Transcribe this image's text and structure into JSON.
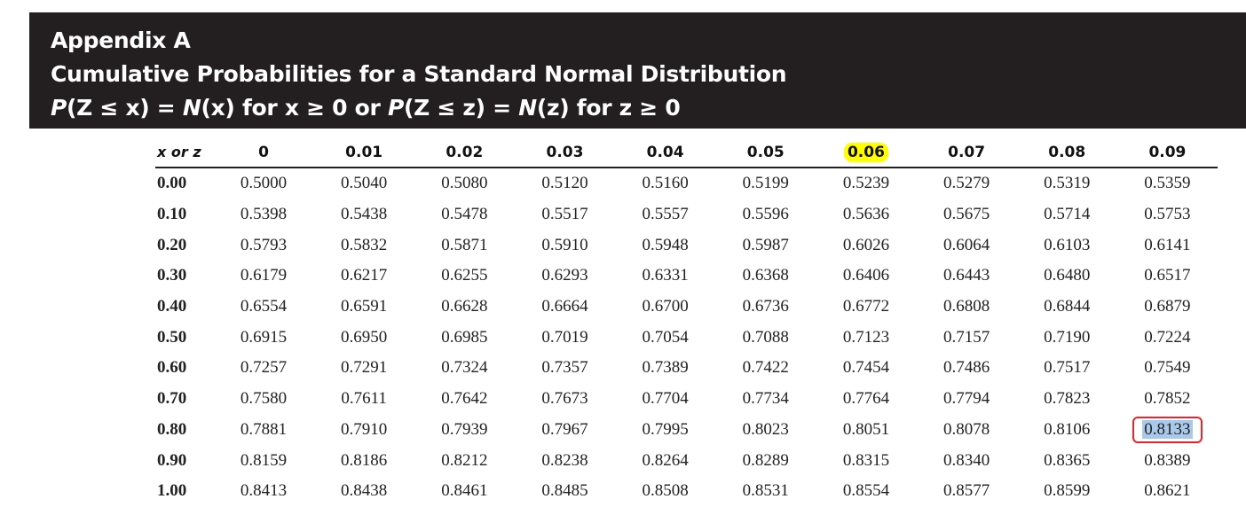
{
  "header": {
    "title": "Appendix A",
    "subtitle": "Cumulative Probabilities for a Standard Normal Distribution",
    "formula": {
      "p1": "P",
      "arg1": "(Z ≤ x) = ",
      "n1": "N",
      "rest1": "(x) for x ≥ 0 or ",
      "p2": "P",
      "arg2": "(Z ≤ z) = ",
      "n2": "N",
      "rest2": "(z) for z ≥ 0"
    }
  },
  "table": {
    "corner_label": "x or z",
    "columns": [
      "0",
      "0.01",
      "0.02",
      "0.03",
      "0.04",
      "0.05",
      "0.06",
      "0.07",
      "0.08",
      "0.09"
    ],
    "highlighted_column": "0.06",
    "selected_cell": {
      "row": "0.80",
      "column": "0.09",
      "value": "0.8133"
    },
    "rows": [
      {
        "label": "0.00",
        "values": [
          "0.5000",
          "0.5040",
          "0.5080",
          "0.5120",
          "0.5160",
          "0.5199",
          "0.5239",
          "0.5279",
          "0.5319",
          "0.5359"
        ]
      },
      {
        "label": "0.10",
        "values": [
          "0.5398",
          "0.5438",
          "0.5478",
          "0.5517",
          "0.5557",
          "0.5596",
          "0.5636",
          "0.5675",
          "0.5714",
          "0.5753"
        ]
      },
      {
        "label": "0.20",
        "values": [
          "0.5793",
          "0.5832",
          "0.5871",
          "0.5910",
          "0.5948",
          "0.5987",
          "0.6026",
          "0.6064",
          "0.6103",
          "0.6141"
        ]
      },
      {
        "label": "0.30",
        "values": [
          "0.6179",
          "0.6217",
          "0.6255",
          "0.6293",
          "0.6331",
          "0.6368",
          "0.6406",
          "0.6443",
          "0.6480",
          "0.6517"
        ]
      },
      {
        "label": "0.40",
        "values": [
          "0.6554",
          "0.6591",
          "0.6628",
          "0.6664",
          "0.6700",
          "0.6736",
          "0.6772",
          "0.6808",
          "0.6844",
          "0.6879"
        ]
      },
      {
        "label": "0.50",
        "values": [
          "0.6915",
          "0.6950",
          "0.6985",
          "0.7019",
          "0.7054",
          "0.7088",
          "0.7123",
          "0.7157",
          "0.7190",
          "0.7224"
        ]
      },
      {
        "label": "0.60",
        "values": [
          "0.7257",
          "0.7291",
          "0.7324",
          "0.7357",
          "0.7389",
          "0.7422",
          "0.7454",
          "0.7486",
          "0.7517",
          "0.7549"
        ]
      },
      {
        "label": "0.70",
        "values": [
          "0.7580",
          "0.7611",
          "0.7642",
          "0.7673",
          "0.7704",
          "0.7734",
          "0.7764",
          "0.7794",
          "0.7823",
          "0.7852"
        ]
      },
      {
        "label": "0.80",
        "values": [
          "0.7881",
          "0.7910",
          "0.7939",
          "0.7967",
          "0.7995",
          "0.8023",
          "0.8051",
          "0.8078",
          "0.8106",
          "0.8133"
        ]
      },
      {
        "label": "0.90",
        "values": [
          "0.8159",
          "0.8186",
          "0.8212",
          "0.8238",
          "0.8264",
          "0.8289",
          "0.8315",
          "0.8340",
          "0.8365",
          "0.8389"
        ]
      },
      {
        "label": "1.00",
        "values": [
          "0.8413",
          "0.8438",
          "0.8461",
          "0.8485",
          "0.8508",
          "0.8531",
          "0.8554",
          "0.8577",
          "0.8599",
          "0.8621"
        ]
      }
    ]
  },
  "colors": {
    "banner_bg": "#231f20",
    "column_highlight": "#ffff00",
    "selection_box": "#e8232a",
    "selection_fill": "#a9c9ea"
  }
}
